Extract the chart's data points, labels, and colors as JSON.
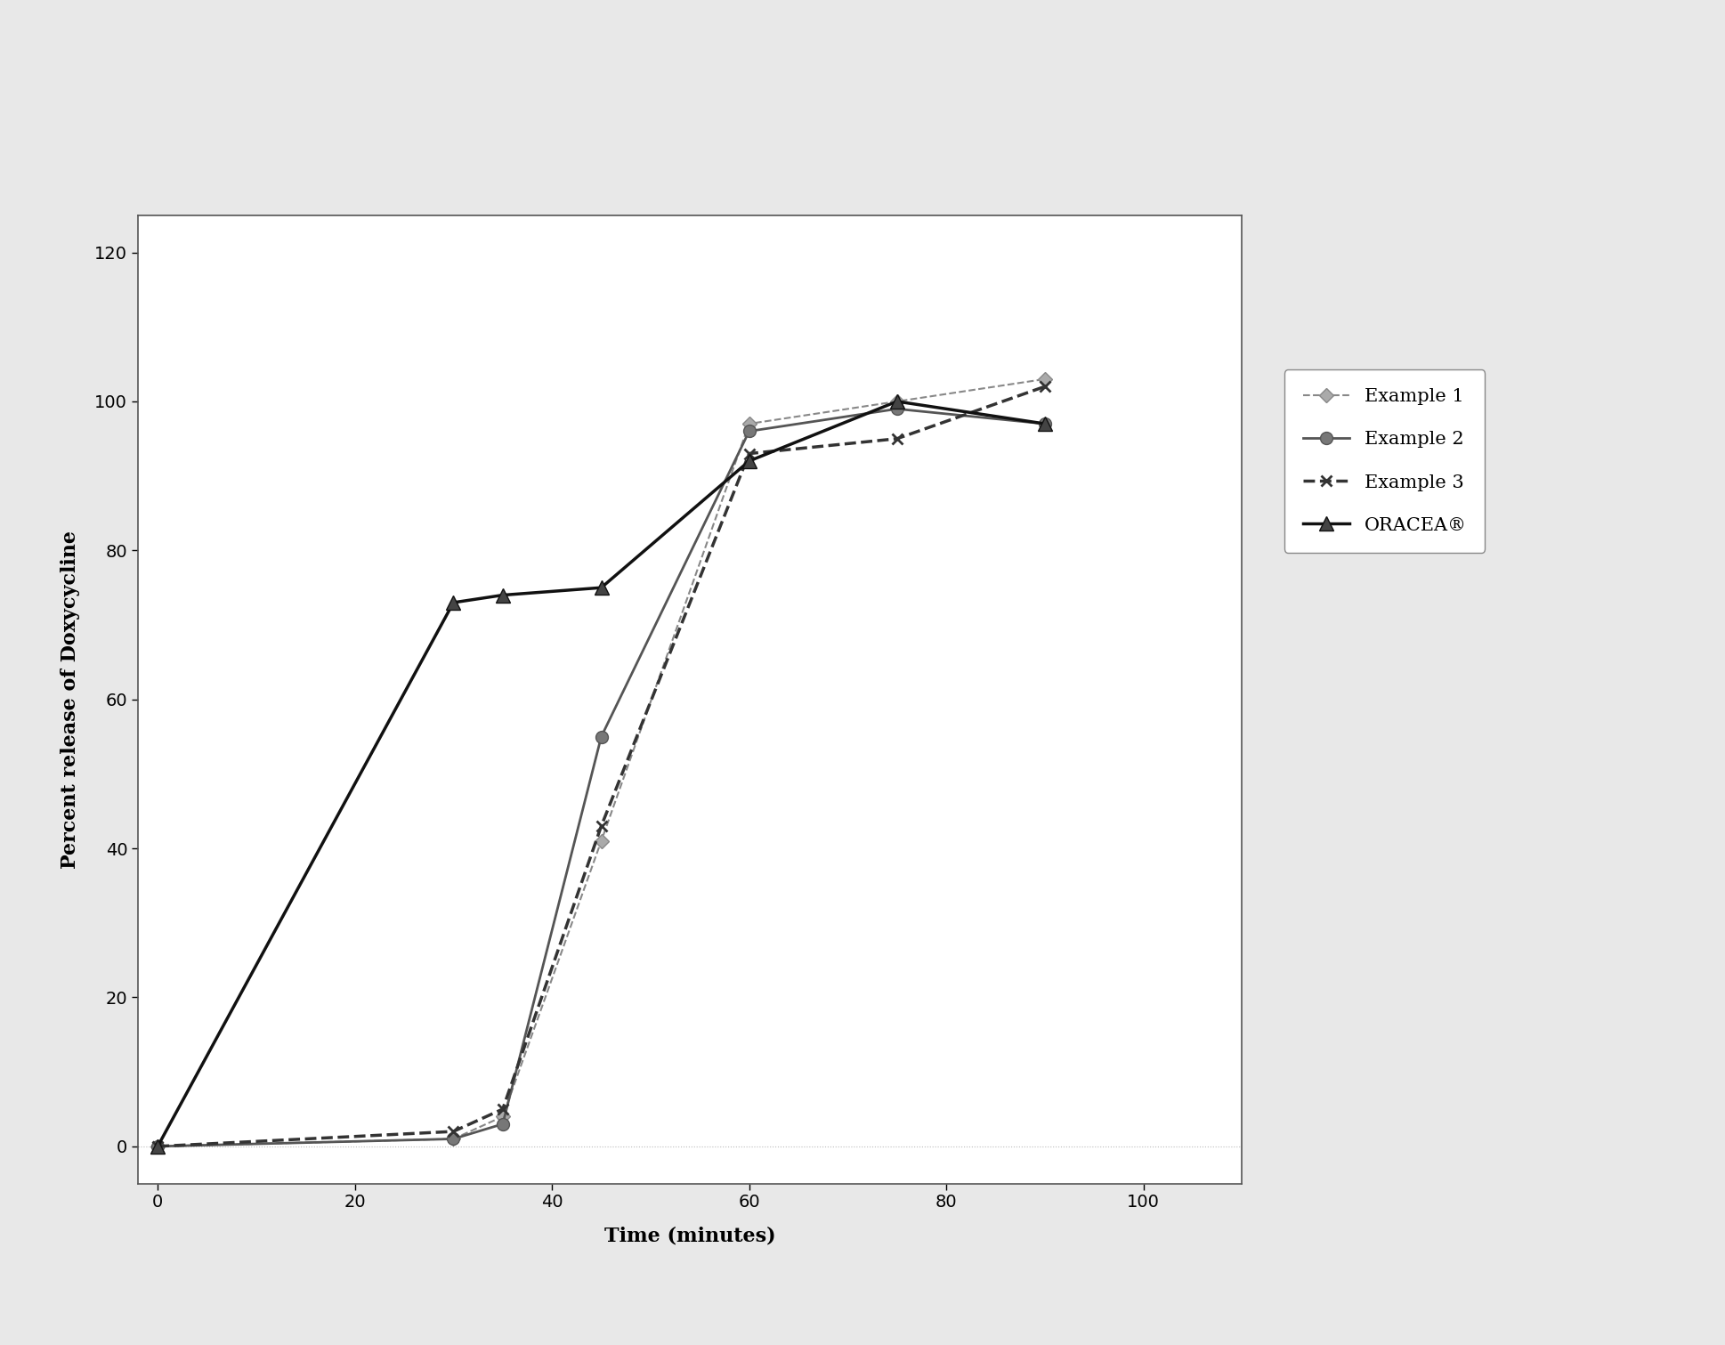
{
  "series": [
    {
      "label": "Example 1",
      "x": [
        0,
        30,
        35,
        45,
        60,
        75,
        90
      ],
      "y": [
        0,
        1,
        4,
        41,
        97,
        100,
        103
      ],
      "color": "#888888",
      "linewidth": 1.5,
      "linestyle": "--",
      "marker": "D",
      "markersize": 8,
      "markerfacecolor": "#aaaaaa",
      "zorder": 2
    },
    {
      "label": "Example 2",
      "x": [
        0,
        30,
        35,
        45,
        60,
        75,
        90
      ],
      "y": [
        0,
        1,
        3,
        55,
        96,
        99,
        97
      ],
      "color": "#555555",
      "linewidth": 2.0,
      "linestyle": "-",
      "marker": "o",
      "markersize": 10,
      "markerfacecolor": "#777777",
      "zorder": 3
    },
    {
      "label": "Example 3",
      "x": [
        0,
        30,
        35,
        45,
        60,
        75,
        90
      ],
      "y": [
        0,
        2,
        5,
        43,
        93,
        95,
        102
      ],
      "color": "#333333",
      "linewidth": 2.5,
      "linestyle": "--",
      "marker": "x",
      "markersize": 9,
      "markerfacecolor": "#333333",
      "zorder": 4
    },
    {
      "label": "ORACEA®",
      "x": [
        0,
        30,
        35,
        45,
        60,
        75,
        90
      ],
      "y": [
        0,
        73,
        74,
        75,
        92,
        100,
        97
      ],
      "color": "#111111",
      "linewidth": 2.5,
      "linestyle": "-",
      "marker": "^",
      "markersize": 12,
      "markerfacecolor": "#444444",
      "zorder": 5
    }
  ],
  "xlabel": "Time (minutes)",
  "ylabel": "Percent release of Doxycycline",
  "xlim": [
    -2,
    110
  ],
  "ylim": [
    -5,
    125
  ],
  "xticks": [
    0,
    20,
    40,
    60,
    80,
    100
  ],
  "yticks": [
    0,
    20,
    40,
    60,
    80,
    100,
    120
  ],
  "background_color": "#e8e8e8",
  "plot_bg_color": "#ffffff",
  "box_color": "#888888",
  "label_fontsize": 16,
  "tick_fontsize": 14,
  "legend_fontsize": 15
}
